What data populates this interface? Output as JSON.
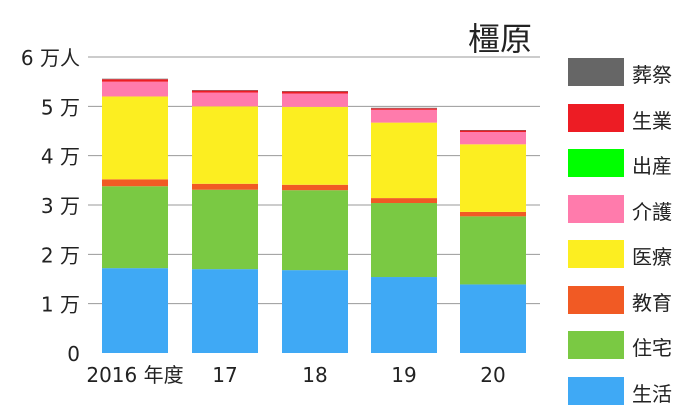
{
  "chart_data": {
    "type": "bar",
    "stacked": true,
    "title": "橿原",
    "categories": [
      "2016 年度",
      "17",
      "18",
      "19",
      "20"
    ],
    "y_ticks": [
      "0",
      "1 万",
      "2 万",
      "3 万",
      "4 万",
      "5 万",
      "6 万人"
    ],
    "ylim": [
      0,
      60000
    ],
    "grid": true,
    "legend_position": "right",
    "series": [
      {
        "name": "生活",
        "color": "#3fa9f5",
        "values": [
          17200,
          17000,
          16800,
          15400,
          13900
        ]
      },
      {
        "name": "住宅",
        "color": "#7ac943",
        "values": [
          16600,
          16100,
          16200,
          15000,
          13800
        ]
      },
      {
        "name": "教育",
        "color": "#f15a24",
        "values": [
          1400,
          1200,
          1100,
          1000,
          900
        ]
      },
      {
        "name": "医療",
        "color": "#fcee21",
        "values": [
          16800,
          15700,
          15800,
          15300,
          13700
        ]
      },
      {
        "name": "介護",
        "color": "#ff7bac",
        "values": [
          3000,
          2800,
          2700,
          2600,
          2500
        ]
      },
      {
        "name": "出産",
        "color": "#00ff00",
        "values": [
          0,
          0,
          0,
          0,
          0
        ]
      },
      {
        "name": "生業",
        "color": "#ed1c24",
        "values": [
          500,
          400,
          400,
          300,
          300
        ]
      },
      {
        "name": "葬祭",
        "color": "#666666",
        "values": [
          100,
          100,
          100,
          100,
          100
        ]
      }
    ]
  }
}
